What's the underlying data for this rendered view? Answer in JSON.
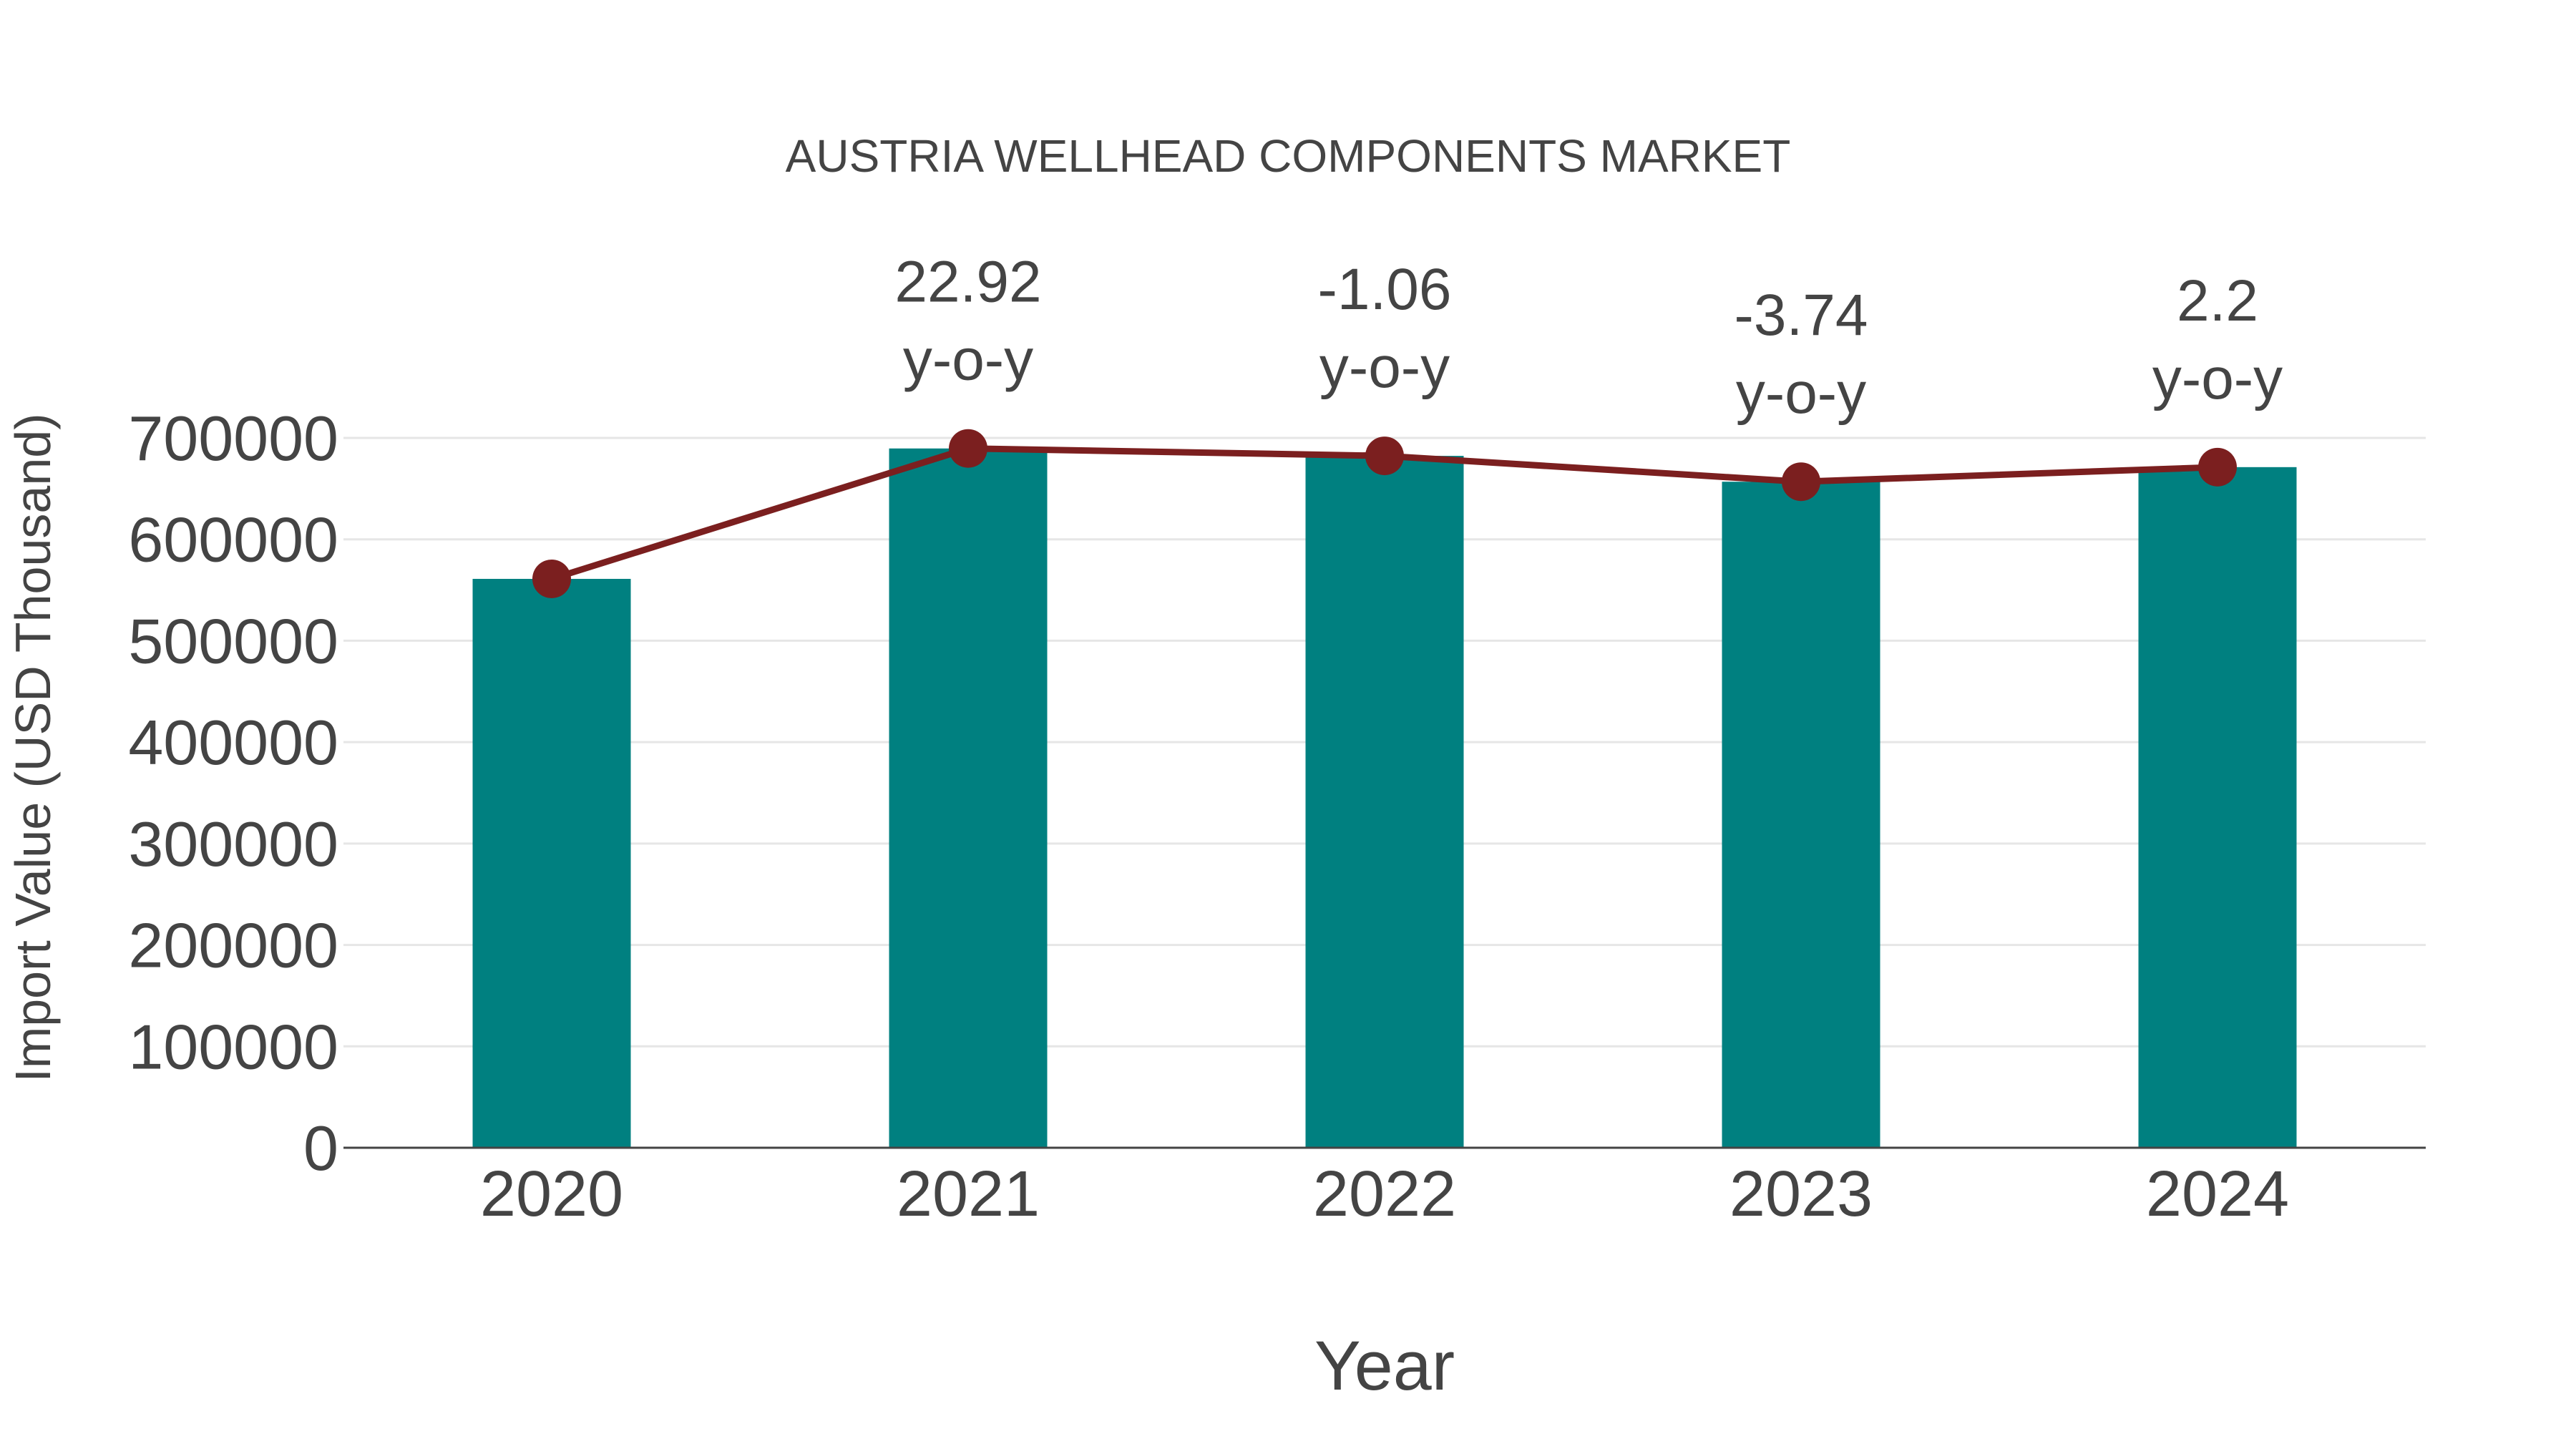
{
  "chart_data": {
    "type": "bar",
    "title": "AUSTRIA WELLHEAD COMPONENTS MARKET",
    "xlabel": "Year",
    "ylabel": "Import Value (USD Thousand)",
    "categories": [
      "2020",
      "2021",
      "2022",
      "2023",
      "2024"
    ],
    "series": [
      {
        "name": "Import Value",
        "type": "bar",
        "color": "#008080",
        "values": [
          561000,
          689600,
          682300,
          656800,
          671200
        ]
      },
      {
        "name": "Import Value (trend)",
        "type": "line",
        "color": "#7b1f1f",
        "values": [
          561000,
          689600,
          682300,
          656800,
          671200
        ]
      }
    ],
    "annotations": [
      {
        "category": "2021",
        "value": "22.92",
        "suffix": "y-o-y"
      },
      {
        "category": "2022",
        "value": "-1.06",
        "suffix": "y-o-y"
      },
      {
        "category": "2023",
        "value": "-3.74",
        "suffix": "y-o-y"
      },
      {
        "category": "2024",
        "value": "2.2",
        "suffix": "y-o-y"
      }
    ],
    "yticks": [
      0,
      100000,
      200000,
      300000,
      400000,
      500000,
      600000,
      700000
    ],
    "ylim": [
      0,
      700000
    ],
    "grid": true,
    "legend": false
  },
  "colors": {
    "bar": "#008080",
    "line": "#7b1f1f",
    "text": "#444444",
    "grid": "#e6e6e6",
    "axis": "#444444"
  }
}
